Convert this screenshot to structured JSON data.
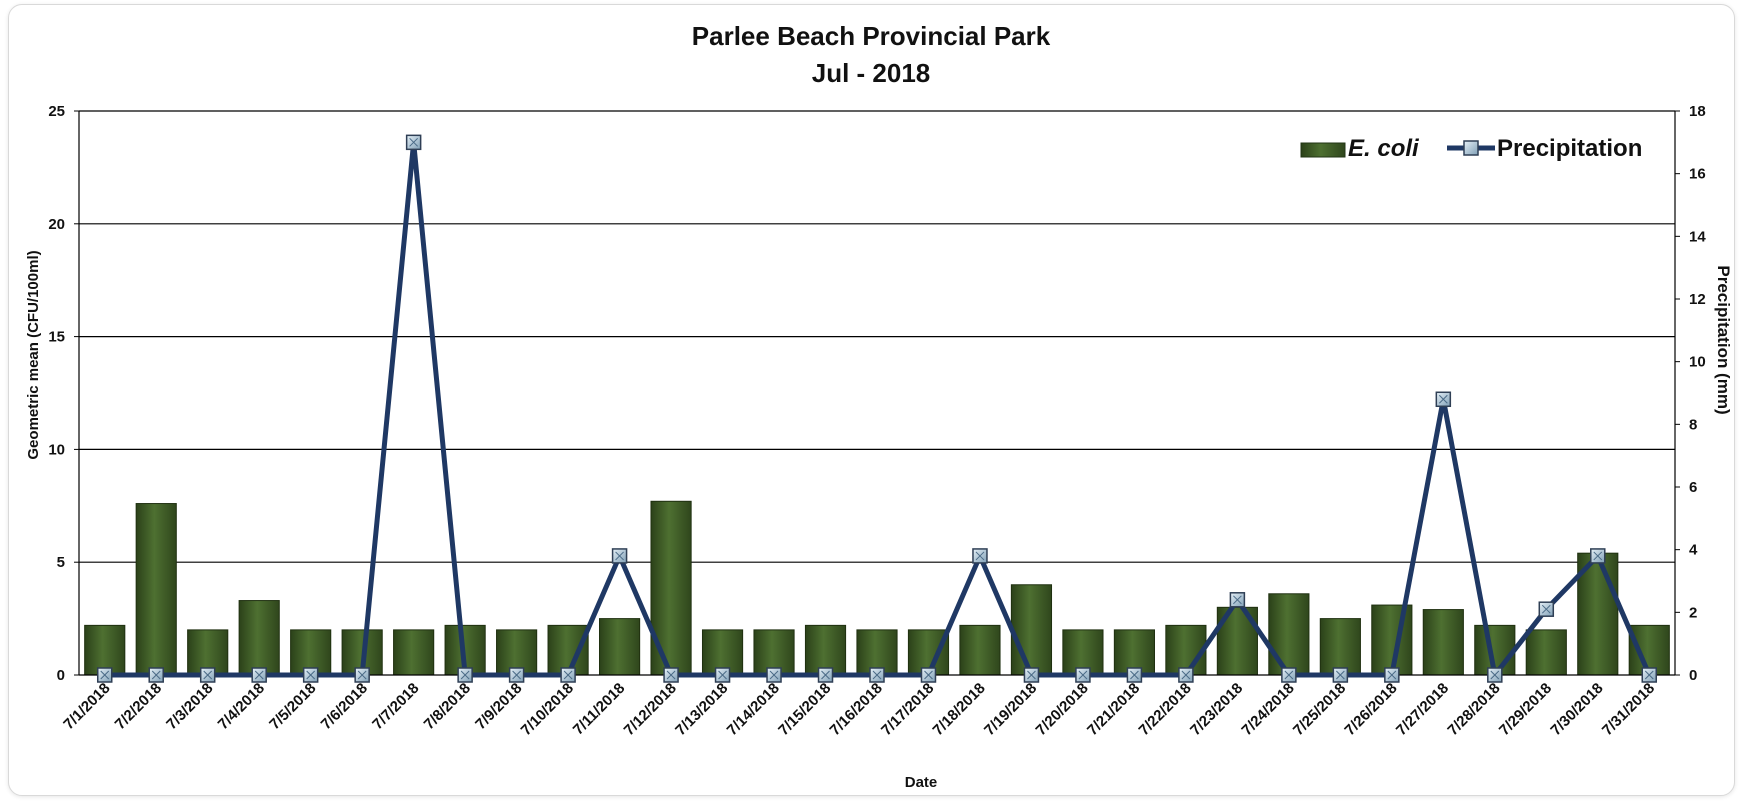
{
  "chart_data": {
    "type": "bar+line",
    "title": "Parlee Beach Provincial Park",
    "subtitle": "Jul - 2018",
    "xlabel": "Date",
    "ylabel": "Geometric mean (CFU/100ml)",
    "y2label": "Precipitation (mm)",
    "ylim": [
      0,
      25
    ],
    "y2lim": [
      0,
      18
    ],
    "yticks": [
      0,
      5,
      10,
      15,
      20,
      25
    ],
    "y2ticks": [
      0,
      2,
      4,
      6,
      8,
      10,
      12,
      14,
      16,
      18
    ],
    "grid": "horizontal",
    "legend_position": "top-right",
    "categories": [
      "7/1/2018",
      "7/2/2018",
      "7/3/2018",
      "7/4/2018",
      "7/5/2018",
      "7/6/2018",
      "7/7/2018",
      "7/8/2018",
      "7/9/2018",
      "7/10/2018",
      "7/11/2018",
      "7/12/2018",
      "7/13/2018",
      "7/14/2018",
      "7/15/2018",
      "7/16/2018",
      "7/17/2018",
      "7/18/2018",
      "7/19/2018",
      "7/20/2018",
      "7/21/2018",
      "7/22/2018",
      "7/23/2018",
      "7/24/2018",
      "7/25/2018",
      "7/26/2018",
      "7/27/2018",
      "7/28/2018",
      "7/29/2018",
      "7/30/2018",
      "7/31/2018"
    ],
    "series": [
      {
        "name": "E. coli",
        "kind": "bar",
        "axis": "left",
        "color": "#3d5a26",
        "values": [
          2.2,
          7.6,
          2.0,
          3.3,
          2.0,
          2.0,
          2.0,
          2.2,
          2.0,
          2.2,
          2.5,
          7.7,
          2.0,
          2.0,
          2.2,
          2.0,
          2.0,
          2.2,
          4.0,
          2.0,
          2.0,
          2.2,
          3.0,
          3.6,
          2.5,
          3.1,
          2.9,
          2.2,
          2.0,
          5.4,
          2.2
        ]
      },
      {
        "name": "Precipitation",
        "kind": "line",
        "axis": "right",
        "color": "#1f3864",
        "values": [
          0,
          0,
          0,
          0,
          0,
          0,
          17,
          0,
          0,
          0,
          3.8,
          0,
          0,
          0,
          0,
          0,
          0,
          3.8,
          0,
          0,
          0,
          0,
          2.4,
          0,
          0,
          0,
          8.8,
          0,
          2.1,
          3.8,
          0
        ]
      }
    ]
  }
}
